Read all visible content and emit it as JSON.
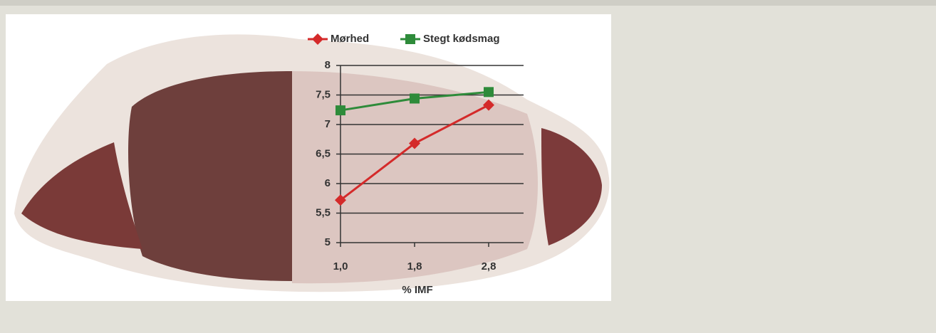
{
  "chart_data": {
    "type": "line",
    "x_label": "% IMF",
    "categories": [
      "1,0",
      "1,8",
      "2,8"
    ],
    "series": [
      {
        "name": "Mørhed",
        "color": "#d42a2a",
        "marker": "diamond",
        "values": [
          5.72,
          6.68,
          7.33
        ]
      },
      {
        "name": "Stegt kødsmag",
        "color": "#2e8b3a",
        "marker": "square",
        "values": [
          7.24,
          7.44,
          7.55
        ]
      }
    ],
    "ylim": [
      5,
      8
    ],
    "yticks": [
      5,
      {
        "value": 5.5,
        "label": "5,5"
      },
      6,
      {
        "value": 6.5,
        "label": "6,5"
      },
      7,
      {
        "value": 7.5,
        "label": "7,5"
      },
      8
    ],
    "grid": true
  }
}
